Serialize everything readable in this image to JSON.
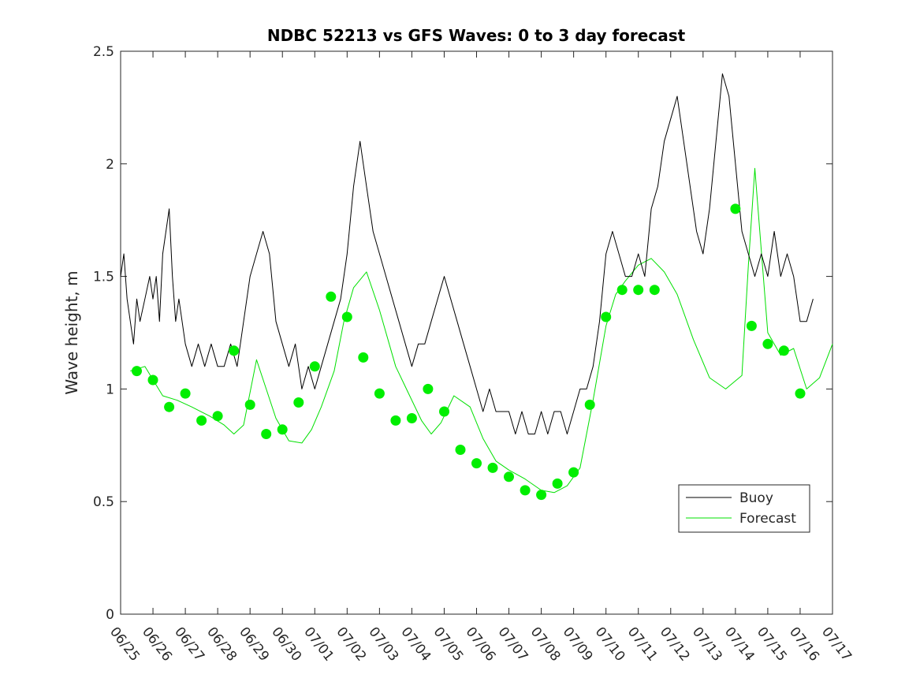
{
  "chart_data": {
    "type": "line",
    "title": "NDBC 52213 vs GFS Waves: 0 to 3 day forecast",
    "xlabel": "",
    "ylabel": "Wave height, m",
    "xlim": [
      0,
      22
    ],
    "ylim": [
      0,
      2.5
    ],
    "x_tick_values": [
      0,
      1,
      2,
      3,
      4,
      5,
      6,
      7,
      8,
      9,
      10,
      11,
      12,
      13,
      14,
      15,
      16,
      17,
      18,
      19,
      20,
      21,
      22
    ],
    "x_tick_labels": [
      "06/25",
      "06/26",
      "06/27",
      "06/28",
      "06/29",
      "06/30",
      "07/01",
      "07/02",
      "07/03",
      "07/04",
      "07/05",
      "07/06",
      "07/07",
      "07/08",
      "07/09",
      "07/10",
      "07/11",
      "07/12",
      "07/13",
      "07/14",
      "07/15",
      "07/16",
      "07/17"
    ],
    "y_tick_labels": [
      "0",
      "0.5",
      "1",
      "1.5",
      "2",
      "2.5"
    ],
    "y_tick_values": [
      0,
      0.5,
      1,
      1.5,
      2,
      2.5
    ],
    "legend": {
      "position": "lower-right",
      "entries": [
        {
          "label": "Buoy",
          "color": "#000000"
        },
        {
          "label": "Forecast",
          "color": "#00e000"
        }
      ]
    },
    "colors": {
      "buoy": "#000000",
      "forecast": "#00e000",
      "markers": "#00ee00"
    },
    "series": [
      {
        "name": "Buoy",
        "x": [
          0,
          0.1,
          0.2,
          0.3,
          0.4,
          0.5,
          0.6,
          0.75,
          0.9,
          1.0,
          1.1,
          1.2,
          1.3,
          1.4,
          1.5,
          1.6,
          1.7,
          1.8,
          1.9,
          2.0,
          2.2,
          2.4,
          2.6,
          2.8,
          3.0,
          3.2,
          3.4,
          3.6,
          3.8,
          4.0,
          4.2,
          4.4,
          4.6,
          4.8,
          5.0,
          5.2,
          5.4,
          5.6,
          5.8,
          6.0,
          6.2,
          6.4,
          6.6,
          6.8,
          7.0,
          7.2,
          7.4,
          7.6,
          7.8,
          8.0,
          8.2,
          8.4,
          8.6,
          8.8,
          9.0,
          9.2,
          9.4,
          9.6,
          9.8,
          10.0,
          10.2,
          10.4,
          10.6,
          10.8,
          11.0,
          11.2,
          11.4,
          11.6,
          11.8,
          12.0,
          12.2,
          12.4,
          12.6,
          12.8,
          13.0,
          13.2,
          13.4,
          13.6,
          13.8,
          14.0,
          14.2,
          14.4,
          14.6,
          14.8,
          15.0,
          15.2,
          15.4,
          15.6,
          15.8,
          16.0,
          16.2,
          16.4,
          16.6,
          16.8,
          17.0,
          17.2,
          17.4,
          17.6,
          17.8,
          18.0,
          18.2,
          18.4,
          18.6,
          18.8,
          19.0,
          19.2,
          19.4,
          19.6,
          19.8,
          20.0,
          20.2,
          20.4,
          20.6,
          20.8,
          21.0,
          21.2,
          21.4
        ],
        "y": [
          1.5,
          1.6,
          1.4,
          1.3,
          1.2,
          1.4,
          1.3,
          1.4,
          1.5,
          1.4,
          1.5,
          1.3,
          1.6,
          1.7,
          1.8,
          1.5,
          1.3,
          1.4,
          1.3,
          1.2,
          1.1,
          1.2,
          1.1,
          1.2,
          1.1,
          1.1,
          1.2,
          1.1,
          1.3,
          1.5,
          1.6,
          1.7,
          1.6,
          1.3,
          1.2,
          1.1,
          1.2,
          1.0,
          1.1,
          1.0,
          1.1,
          1.2,
          1.3,
          1.4,
          1.6,
          1.9,
          2.1,
          1.9,
          1.7,
          1.6,
          1.5,
          1.4,
          1.3,
          1.2,
          1.1,
          1.2,
          1.2,
          1.3,
          1.4,
          1.5,
          1.4,
          1.3,
          1.2,
          1.1,
          1.0,
          0.9,
          1.0,
          0.9,
          0.9,
          0.9,
          0.8,
          0.9,
          0.8,
          0.8,
          0.9,
          0.8,
          0.9,
          0.9,
          0.8,
          0.9,
          1.0,
          1.0,
          1.1,
          1.3,
          1.6,
          1.7,
          1.6,
          1.5,
          1.5,
          1.6,
          1.5,
          1.8,
          1.9,
          2.1,
          2.2,
          2.3,
          2.1,
          1.9,
          1.7,
          1.6,
          1.8,
          2.1,
          2.4,
          2.3,
          2.0,
          1.7,
          1.6,
          1.5,
          1.6,
          1.5,
          1.7,
          1.5,
          1.6,
          1.5,
          1.3,
          1.3,
          1.4
        ]
      },
      {
        "name": "Forecast",
        "x": [
          0.3,
          0.75,
          1.3,
          1.75,
          2.2,
          2.75,
          3.2,
          3.5,
          3.8,
          4.2,
          4.5,
          4.8,
          5.2,
          5.6,
          5.9,
          6.2,
          6.6,
          6.9,
          7.2,
          7.6,
          8.0,
          8.5,
          8.9,
          9.3,
          9.6,
          9.9,
          10.3,
          10.8,
          11.2,
          11.6,
          12.0,
          12.5,
          13.0,
          13.4,
          13.8,
          14.2,
          14.6,
          15.0,
          15.3,
          15.6,
          16.0,
          16.4,
          16.8,
          17.2,
          17.7,
          18.2,
          18.7,
          19.2,
          19.4,
          19.6,
          20.0,
          20.4,
          20.8,
          21.2,
          21.6,
          22.0
        ],
        "y": [
          1.08,
          1.1,
          0.97,
          0.95,
          0.92,
          0.88,
          0.84,
          0.8,
          0.84,
          1.13,
          1.0,
          0.87,
          0.77,
          0.76,
          0.82,
          0.92,
          1.08,
          1.3,
          1.45,
          1.52,
          1.35,
          1.1,
          0.98,
          0.86,
          0.8,
          0.85,
          0.97,
          0.92,
          0.78,
          0.68,
          0.64,
          0.6,
          0.55,
          0.54,
          0.57,
          0.65,
          0.95,
          1.28,
          1.42,
          1.48,
          1.55,
          1.58,
          1.52,
          1.42,
          1.22,
          1.05,
          1.0,
          1.06,
          1.55,
          1.98,
          1.25,
          1.15,
          1.18,
          1.0,
          1.05,
          1.2
        ]
      },
      {
        "name": "Forecast points",
        "x": [
          0.5,
          1.0,
          1.5,
          2.0,
          2.5,
          3.0,
          3.5,
          4.0,
          4.5,
          5.0,
          5.5,
          6.0,
          6.5,
          7.0,
          7.5,
          8.0,
          8.5,
          9.0,
          9.5,
          10.0,
          10.5,
          11.0,
          11.5,
          12.0,
          12.5,
          13.0,
          13.5,
          14.0,
          14.5,
          15.0,
          15.5,
          16.0,
          16.5,
          19.0,
          19.5,
          20.0,
          20.5,
          21.0
        ],
        "y": [
          1.08,
          1.04,
          0.92,
          0.98,
          0.86,
          0.88,
          1.17,
          0.93,
          0.8,
          0.82,
          0.94,
          1.1,
          1.41,
          1.32,
          1.14,
          0.98,
          0.86,
          0.87,
          1.0,
          0.9,
          0.73,
          0.67,
          0.65,
          0.61,
          0.55,
          0.53,
          0.58,
          0.63,
          0.93,
          1.32,
          1.44,
          1.44,
          1.44,
          1.8,
          1.28,
          1.2,
          1.17,
          0.98
        ]
      }
    ]
  }
}
